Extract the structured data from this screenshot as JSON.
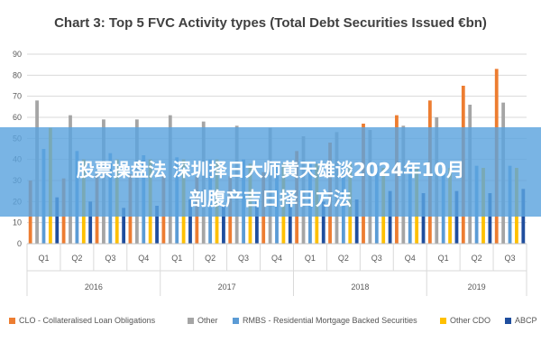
{
  "chart_data": {
    "type": "bar",
    "title": "Chart 3: Top 5 FVC Activity types (Total Debt Securities Issued €bn)",
    "xlabel": "",
    "ylabel": "",
    "ylim": [
      0,
      90
    ],
    "yticks": [
      0,
      10,
      20,
      30,
      40,
      50,
      60,
      70,
      80,
      90
    ],
    "grid": true,
    "legend": "bottom",
    "categories": [
      "Q1",
      "Q2",
      "Q3",
      "Q4",
      "Q1",
      "Q2",
      "Q3",
      "Q4",
      "Q1",
      "Q2",
      "Q3",
      "Q4",
      "Q1",
      "Q2",
      "Q3"
    ],
    "groups": [
      {
        "label": "2016",
        "count": 4
      },
      {
        "label": "2017",
        "count": 4
      },
      {
        "label": "2018",
        "count": 4
      },
      {
        "label": "2019",
        "count": 3
      }
    ],
    "series": [
      {
        "name": "CLO - Collateralised Loan Obligations",
        "color": "#ed7d31",
        "values": [
          30,
          31,
          33,
          33,
          33,
          32,
          32,
          34,
          44,
          48,
          57,
          61,
          68,
          75,
          83
        ]
      },
      {
        "name": "Other",
        "color": "#a5a5a5",
        "values": [
          68,
          61,
          59,
          59,
          61,
          58,
          56,
          55,
          51,
          53,
          54,
          56,
          60,
          66,
          67
        ]
      },
      {
        "name": "RMBS - Residential Mortgage Backed Securities",
        "color": "#5b9bd5",
        "values": [
          45,
          44,
          43,
          42,
          41,
          40,
          40,
          39,
          38,
          37,
          37,
          37,
          36,
          37,
          37
        ]
      },
      {
        "name": "Other CDO",
        "color": "#ffc000",
        "values": [
          55,
          40,
          40,
          40,
          40,
          40,
          38,
          38,
          38,
          38,
          36,
          36,
          36,
          36,
          36
        ]
      },
      {
        "name": "ABCP",
        "color": "#1f4e9e",
        "values": [
          22,
          20,
          17,
          18,
          21,
          18,
          20,
          23,
          20,
          21,
          25,
          24,
          25,
          24,
          26
        ]
      }
    ]
  },
  "overlay": {
    "line1": "股票操盘法 深圳择日大师黄天雄谈2024年10月",
    "line2": "剖腹产吉日择日方法"
  }
}
